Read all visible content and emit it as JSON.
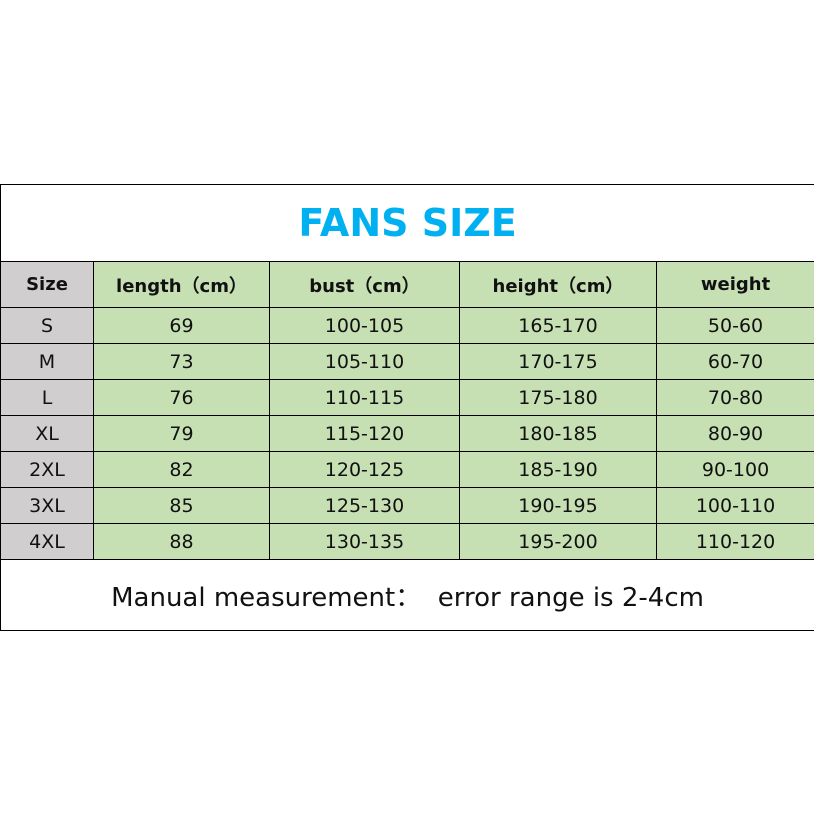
{
  "title": "FANS SIZE",
  "headers": [
    "Size",
    "length（cm）",
    "bust（cm）",
    "height（cm）",
    "weight"
  ],
  "rows": [
    [
      "S",
      "69",
      "100-105",
      "165-170",
      "50-60"
    ],
    [
      "M",
      "73",
      "105-110",
      "170-175",
      "60-70"
    ],
    [
      "L",
      "76",
      "110-115",
      "175-180",
      "70-80"
    ],
    [
      "XL",
      "79",
      "115-120",
      "180-185",
      "80-90"
    ],
    [
      "2XL",
      "82",
      "120-125",
      "185-190",
      "90-100"
    ],
    [
      "3XL",
      "85",
      "125-130",
      "190-195",
      "100-110"
    ],
    [
      "4XL",
      "88",
      "130-135",
      "195-200",
      "110-120"
    ]
  ],
  "footer": "Manual measurement：  error range is 2-4cm",
  "colors": {
    "title": "#00b0f0",
    "size_column": "#d0cece",
    "data_cells": "#c6e0b4"
  }
}
